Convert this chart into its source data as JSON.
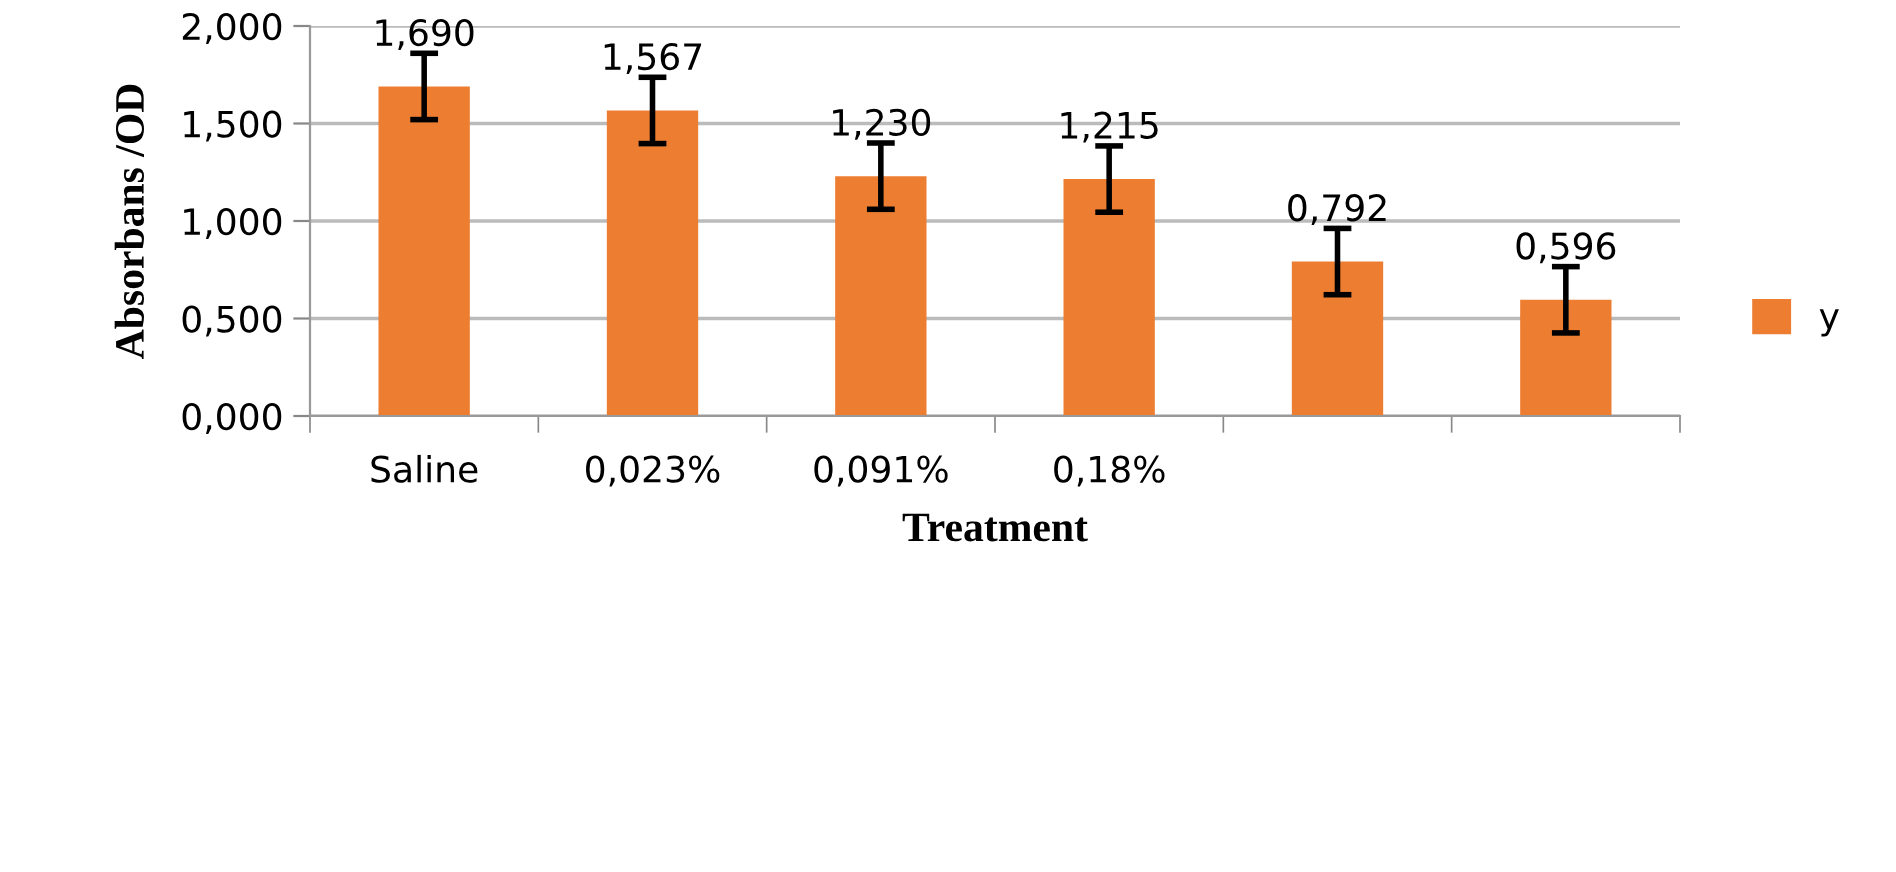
{
  "chart_data": {
    "type": "bar",
    "xlabel": "Treatment",
    "ylabel": "Absorbans /OD",
    "categories": [
      "Saline",
      "0,023%",
      "0,091%",
      "0,18%",
      null,
      null
    ],
    "series": [
      {
        "name": "y",
        "color": "#ed7d31",
        "values": [
          1.69,
          1.567,
          1.23,
          1.215,
          0.792,
          0.596
        ],
        "errors": [
          0.17,
          0.17,
          0.17,
          0.17,
          0.17,
          0.17
        ],
        "value_labels": [
          "1,690",
          "1,567",
          "1,230",
          "1,215",
          "0,792",
          "0,596"
        ]
      }
    ],
    "ylim": [
      0,
      2
    ],
    "yticks": [
      {
        "value": 0,
        "label": "0,000"
      },
      {
        "value": 0.5,
        "label": "0,500"
      },
      {
        "value": 1,
        "label": "1,000"
      },
      {
        "value": 1.5,
        "label": "1,500"
      },
      {
        "value": 2,
        "label": "2,000"
      }
    ],
    "grid": "y",
    "legend": "right"
  }
}
